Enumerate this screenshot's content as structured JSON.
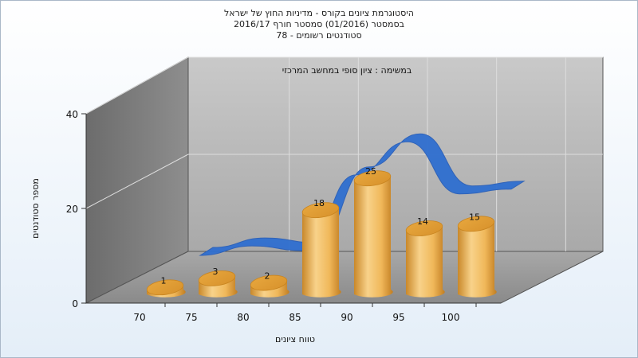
{
  "chart_data": {
    "type": "bar",
    "title_lines": [
      "היסטוגרמת ציונים בקורס - מדיניות החוץ של ישראל",
      "בסמסטר  (01/2016)  סמסטר חורף 2016/17",
      "סטודנטים רשומים - 78"
    ],
    "subtitle": "במשימה : ציון סופי במחשב המרכזי",
    "xlabel": "טווח ציונים",
    "ylabel": "מספר סטודנטים",
    "categories": [
      "70",
      "75",
      "80",
      "85",
      "90",
      "95",
      "100"
    ],
    "values": [
      1,
      3,
      2,
      18,
      25,
      14,
      15
    ],
    "data_labels": [
      "1",
      "3",
      "2",
      "18",
      "25",
      "14",
      "15"
    ],
    "yticks": [
      "0",
      "20",
      "40"
    ],
    "ylim": [
      0,
      40
    ],
    "bar_color": "#e9a83a",
    "curve_color": "#2f6fd0",
    "grid": true,
    "legend": "none",
    "chart_style": "3d"
  }
}
